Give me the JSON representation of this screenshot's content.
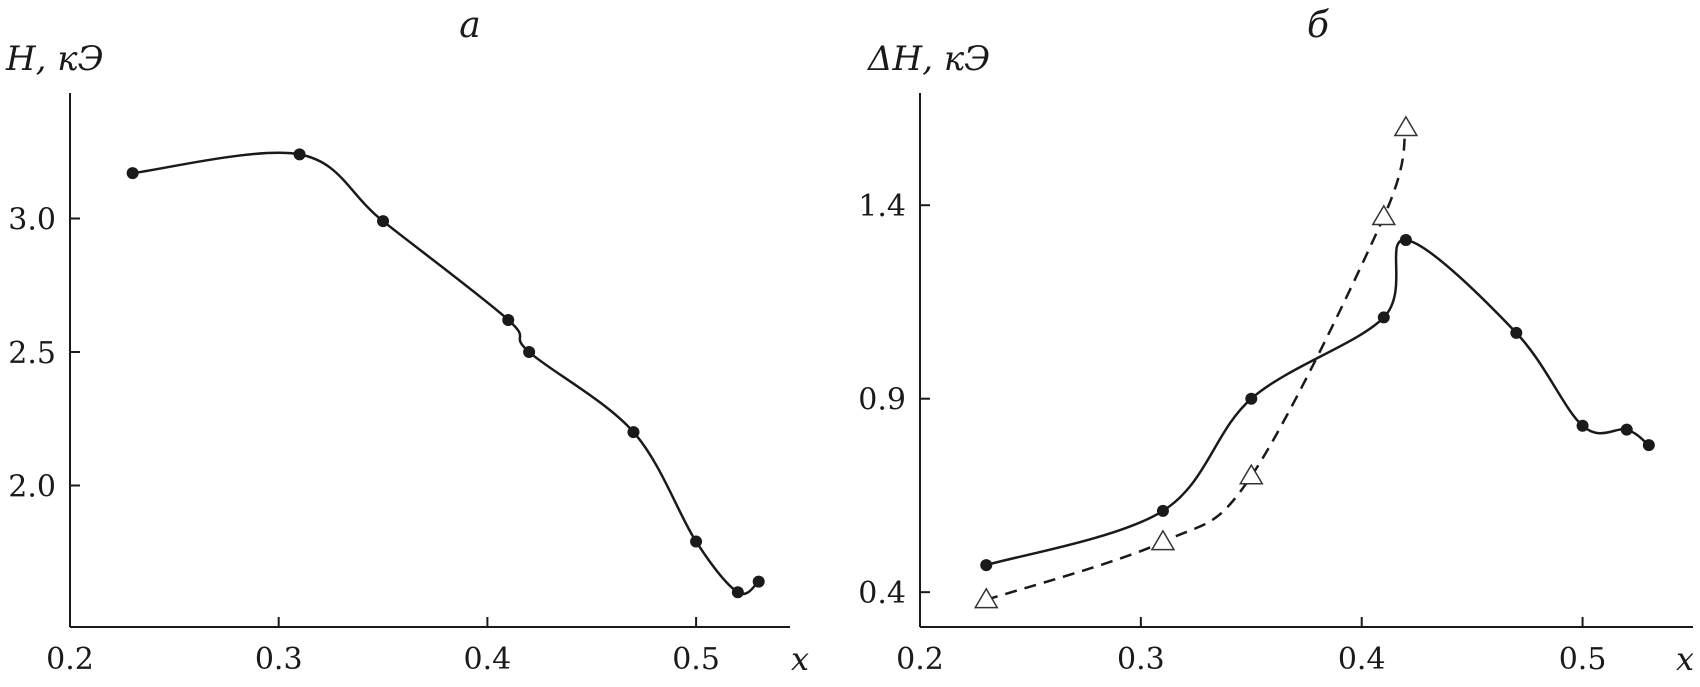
{
  "chart_data": [
    {
      "type": "line",
      "title": "а",
      "ylabel": "H, кЭ",
      "xlabel": "x",
      "xlim": [
        0.2,
        0.545
      ],
      "ylim": [
        1.47,
        3.47
      ],
      "xticks": [
        "0.2",
        "0.3",
        "0.4",
        "0.5"
      ],
      "xtick_values": [
        0.2,
        0.3,
        0.4,
        0.5
      ],
      "yticks": [
        "2.0",
        "2.5",
        "3.0"
      ],
      "ytick_values": [
        2.0,
        2.5,
        3.0
      ],
      "grid": false,
      "series": [
        {
          "style": "solid-dots",
          "x": [
            0.23,
            0.31,
            0.35,
            0.41,
            0.42,
            0.47,
            0.5,
            0.52,
            0.53
          ],
          "y": [
            3.17,
            3.24,
            2.99,
            2.62,
            2.5,
            2.2,
            1.79,
            1.6,
            1.64
          ]
        }
      ]
    },
    {
      "type": "line",
      "title": "б",
      "ylabel": "ΔH, кЭ",
      "xlabel": "x",
      "xlim": [
        0.2,
        0.55
      ],
      "ylim": [
        0.31,
        1.69
      ],
      "xticks": [
        "0.2",
        "0.3",
        "0.4",
        "0.5"
      ],
      "xtick_values": [
        0.2,
        0.3,
        0.4,
        0.5
      ],
      "yticks": [
        "0.4",
        "0.9",
        "1.4"
      ],
      "ytick_values": [
        0.4,
        0.9,
        1.4
      ],
      "grid": false,
      "series": [
        {
          "style": "solid-dots",
          "x": [
            0.23,
            0.31,
            0.35,
            0.41,
            0.42,
            0.47,
            0.5,
            0.52,
            0.53
          ],
          "y": [
            0.47,
            0.61,
            0.9,
            1.11,
            1.31,
            1.07,
            0.83,
            0.82,
            0.78
          ]
        },
        {
          "style": "dashed-triangles",
          "x": [
            0.23,
            0.31,
            0.35,
            0.41,
            0.42
          ],
          "y": [
            0.38,
            0.53,
            0.7,
            1.37,
            1.6
          ]
        }
      ]
    }
  ]
}
